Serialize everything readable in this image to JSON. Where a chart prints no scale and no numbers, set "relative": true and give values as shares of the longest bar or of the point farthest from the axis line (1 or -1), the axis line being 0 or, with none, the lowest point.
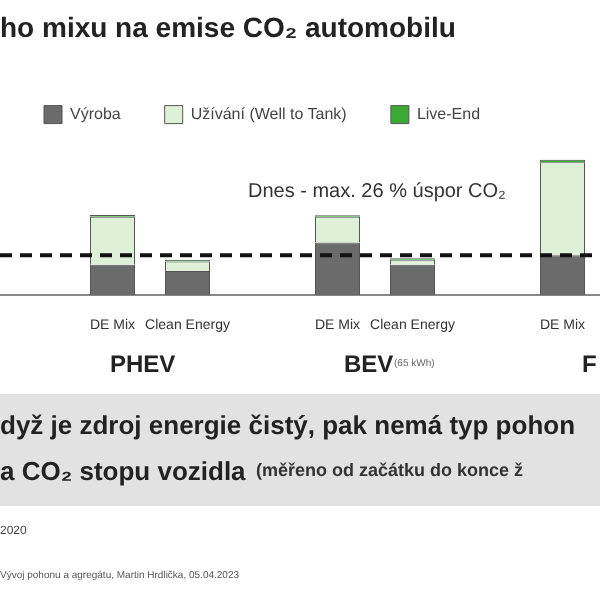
{
  "chart_data": {
    "type": "bar",
    "title": "ho mixu na emise CO₂ automobilu",
    "categories": [
      null,
      "DE Mix",
      "Clean Energy",
      null,
      "DE Mix",
      "Clean Energy",
      null,
      "DE Mix"
    ],
    "stacked": true,
    "relative": true,
    "legend": "top left",
    "series": [
      {
        "name": "Výroba",
        "color": "#6b6b6b",
        "values": [
          null,
          0.225,
          0.178,
          null,
          0.39,
          0.225,
          null,
          0.296
        ]
      },
      {
        "name": "Užívání (Well to Tank)",
        "color": "#dff0d8",
        "values": [
          null,
          0.355,
          0.071,
          null,
          0.189,
          0.036,
          null,
          0.686
        ]
      },
      {
        "name": "Live-End",
        "color": "#3aaa35",
        "values": [
          null,
          0.012,
          0.012,
          null,
          0.012,
          0.012,
          null,
          0.018
        ]
      }
    ],
    "ref_lines": [
      {
        "axis": "y",
        "value": 0.296,
        "line_style": "dashed",
        "color": "#111111",
        "label": "Dnes - max. 26 % úspor CO₂"
      }
    ],
    "annotations": [
      "PHEV",
      "BEV",
      "(65 kWh)",
      "F",
      "dyž je zdroj energie čistý, pak nemá typ pohon",
      "a CO₂ stopu vozidla",
      "(měřeno od začátku do konce ž",
      "2020",
      "Vývoj pohonu a agregátu, Martin Hrdlička, 05.04.2023"
    ]
  }
}
